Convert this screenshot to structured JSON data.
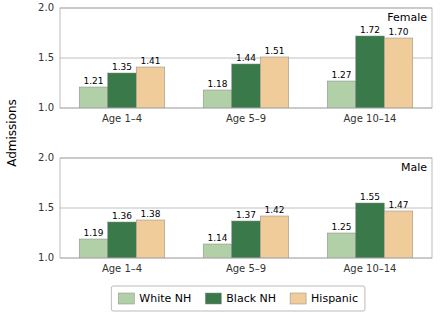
{
  "chart_data": [
    {
      "type": "bar",
      "title": "Female",
      "y_label": "Admissions",
      "categories": [
        "Age 1–4",
        "Age 5–9",
        "Age 10–14"
      ],
      "series": [
        {
          "name": "White NH",
          "color": "#b2d0a8",
          "values": [
            1.21,
            1.18,
            1.27
          ],
          "value_labels": [
            "1.21",
            "1.18",
            "1.27"
          ]
        },
        {
          "name": "Black NH",
          "color": "#3a7a4a",
          "values": [
            1.35,
            1.44,
            1.72
          ],
          "value_labels": [
            "1.35",
            "1.44",
            "1.72"
          ]
        },
        {
          "name": "Hispanic",
          "color": "#f0cc9a",
          "values": [
            1.41,
            1.51,
            1.7
          ],
          "value_labels": [
            "1.41",
            "1.51",
            "1.70"
          ]
        }
      ],
      "ylim": [
        1.0,
        2.0
      ],
      "yticks": [
        {
          "value": 1.0,
          "label": "1.0"
        },
        1.5,
        {
          "value": 2.0,
          "label": "2.0"
        }
      ],
      "grid": true,
      "data_labels": true,
      "legend": "bottom"
    },
    {
      "type": "bar",
      "title": "Male",
      "categories": [
        "Age 1–4",
        "Age 5–9",
        "Age 10–14"
      ],
      "series": [
        {
          "name": "White NH",
          "color": "#b2d0a8",
          "values": [
            1.19,
            1.14,
            1.25
          ],
          "value_labels": [
            "1.19",
            "1.14",
            "1.25"
          ]
        },
        {
          "name": "Black NH",
          "color": "#3a7a4a",
          "values": [
            1.36,
            1.37,
            1.55
          ],
          "value_labels": [
            "1.36",
            "1.37",
            "1.55"
          ]
        },
        {
          "name": "Hispanic",
          "color": "#f0cc9a",
          "values": [
            1.38,
            1.42,
            1.47
          ],
          "value_labels": [
            "1.38",
            "1.42",
            "1.47"
          ]
        }
      ],
      "ylim": [
        1.0,
        2.0
      ],
      "yticks": [
        {
          "value": 1.0,
          "label": "1.0"
        },
        1.5,
        {
          "value": 2.0,
          "label": "2.0"
        }
      ],
      "grid": true,
      "data_labels": true
    }
  ]
}
